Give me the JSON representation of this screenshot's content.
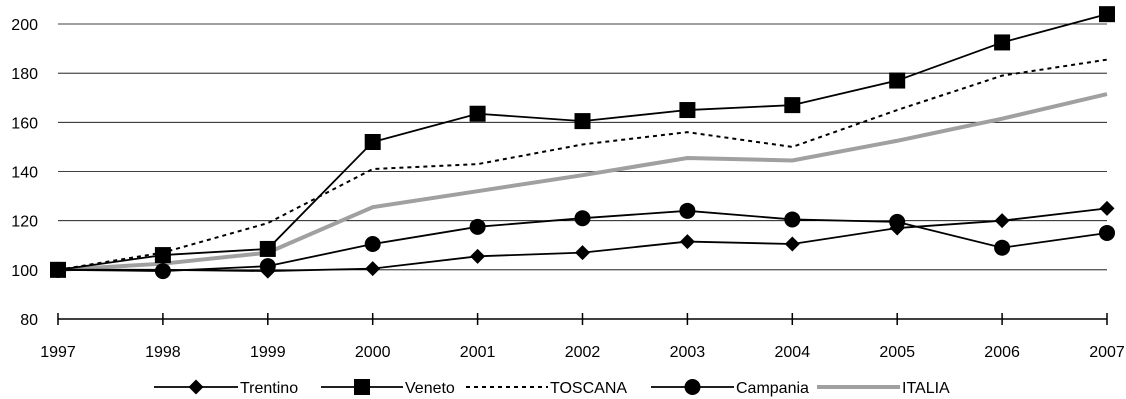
{
  "chart_data": {
    "type": "line",
    "title": "",
    "xlabel": "",
    "ylabel": "",
    "x": [
      "1997",
      "1998",
      "1999",
      "2000",
      "2001",
      "2002",
      "2003",
      "2004",
      "2005",
      "2006",
      "2007"
    ],
    "ylim": [
      80,
      200
    ],
    "yticks": [
      80,
      100,
      120,
      140,
      160,
      180,
      200
    ],
    "grid": "horizontal",
    "legend": "bottom",
    "series": [
      {
        "name": "Trentino",
        "marker": "diamond",
        "style": "solid",
        "color": "#000000",
        "values": [
          100,
          100,
          99.5,
          100.5,
          105.5,
          107,
          111.5,
          110.5,
          117,
          120,
          125
        ]
      },
      {
        "name": "Veneto",
        "marker": "square",
        "style": "solid",
        "color": "#000000",
        "values": [
          100,
          106,
          108.5,
          152,
          163.5,
          160.5,
          165,
          167,
          177,
          192.5,
          204
        ]
      },
      {
        "name": "TOSCANA",
        "marker": "none",
        "style": "dashed",
        "color": "#000000",
        "values": [
          100,
          107,
          119,
          141,
          143,
          151,
          156,
          150,
          165,
          179,
          185.5
        ]
      },
      {
        "name": "Campania",
        "marker": "circle",
        "style": "solid",
        "color": "#000000",
        "values": [
          100,
          99.5,
          101.5,
          110.5,
          117.5,
          121,
          124,
          120.5,
          119.5,
          109,
          115
        ]
      },
      {
        "name": "ITALIA",
        "marker": "none",
        "style": "thick",
        "color": "#a0a0a0",
        "values": [
          100,
          102.5,
          107,
          125.5,
          132,
          138.5,
          145.5,
          144.5,
          152.5,
          161.5,
          171.5
        ]
      }
    ]
  }
}
